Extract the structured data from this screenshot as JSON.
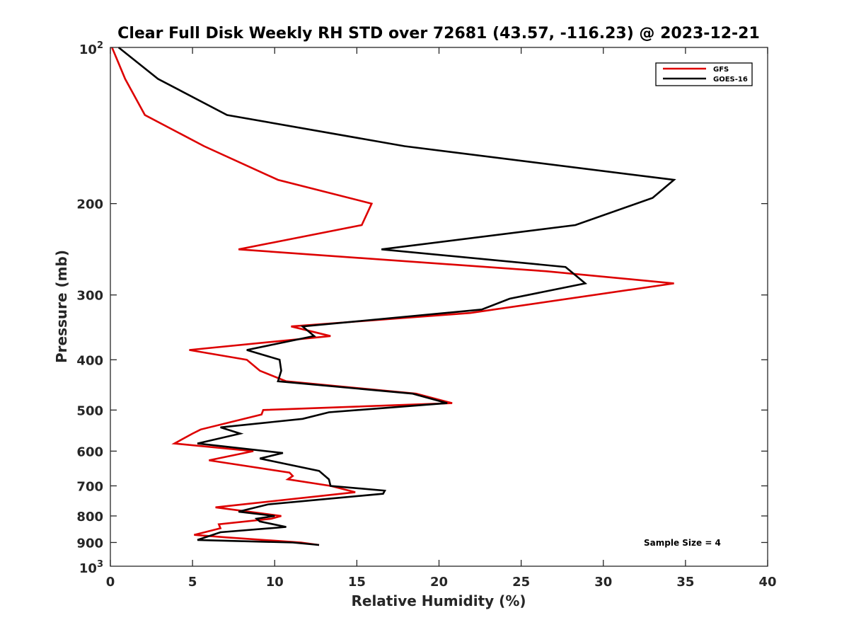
{
  "chart_data": {
    "type": "line",
    "title": "Clear Full Disk Weekly RH STD over 72681 (43.57, -116.23) @ 2023-12-21",
    "xlabel": "Relative Humidity (%)",
    "ylabel": "Pressure (mb)",
    "xlim": [
      0,
      40
    ],
    "ylim": [
      100,
      1000
    ],
    "y_scale": "log",
    "y_reversed": true,
    "xticks": [
      0,
      5,
      10,
      15,
      20,
      25,
      30,
      35,
      40
    ],
    "xtick_labels": [
      "0",
      "5",
      "10",
      "15",
      "20",
      "25",
      "30",
      "35",
      "40"
    ],
    "yticks": [
      200,
      300,
      400,
      500,
      600,
      700,
      800,
      900
    ],
    "ytick_labels": [
      "200",
      "300",
      "400",
      "500",
      "600",
      "700",
      "800",
      "900"
    ],
    "ytick_top": {
      "base": "10",
      "exp": "2"
    },
    "ytick_bottom": {
      "base": "10",
      "exp": "3"
    },
    "grid": false,
    "legend_position": "top-right",
    "annotation": "Sample Size = 4",
    "series": [
      {
        "name": "GFS",
        "color": "#dd0000",
        "points": [
          [
            0.1,
            100
          ],
          [
            0.9,
            115
          ],
          [
            2.1,
            135
          ],
          [
            5.7,
            155
          ],
          [
            10.2,
            180
          ],
          [
            15.9,
            200
          ],
          [
            15.3,
            220
          ],
          [
            7.8,
            245
          ],
          [
            26.5,
            270
          ],
          [
            34.3,
            285
          ],
          [
            21.9,
            325
          ],
          [
            11.0,
            345
          ],
          [
            13.4,
            360
          ],
          [
            4.8,
            383
          ],
          [
            8.3,
            400
          ],
          [
            9.1,
            420
          ],
          [
            10.7,
            440
          ],
          [
            18.6,
            465
          ],
          [
            20.8,
            485
          ],
          [
            9.3,
            500
          ],
          [
            9.2,
            510
          ],
          [
            5.5,
            545
          ],
          [
            5.0,
            555
          ],
          [
            3.9,
            580
          ],
          [
            8.7,
            600
          ],
          [
            6.0,
            625
          ],
          [
            10.9,
            660
          ],
          [
            11.1,
            670
          ],
          [
            10.8,
            680
          ],
          [
            13.4,
            700
          ],
          [
            14.9,
            720
          ],
          [
            6.4,
            770
          ],
          [
            10.4,
            800
          ],
          [
            9.8,
            810
          ],
          [
            6.6,
            830
          ],
          [
            6.7,
            845
          ],
          [
            5.1,
            870
          ],
          [
            7.1,
            880
          ],
          [
            11.6,
            900
          ],
          [
            12.7,
            910
          ]
        ]
      },
      {
        "name": "GOES-16",
        "color": "#000000",
        "points": [
          [
            0.5,
            100
          ],
          [
            2.9,
            115
          ],
          [
            7.1,
            135
          ],
          [
            17.9,
            155
          ],
          [
            34.3,
            180
          ],
          [
            33.0,
            195
          ],
          [
            28.3,
            220
          ],
          [
            16.5,
            245
          ],
          [
            27.7,
            265
          ],
          [
            28.9,
            285
          ],
          [
            24.3,
            305
          ],
          [
            22.6,
            320
          ],
          [
            11.7,
            345
          ],
          [
            12.4,
            360
          ],
          [
            8.3,
            383
          ],
          [
            10.3,
            400
          ],
          [
            10.4,
            420
          ],
          [
            10.2,
            440
          ],
          [
            18.4,
            465
          ],
          [
            20.5,
            485
          ],
          [
            13.3,
            505
          ],
          [
            11.7,
            520
          ],
          [
            6.7,
            540
          ],
          [
            7.9,
            555
          ],
          [
            5.3,
            580
          ],
          [
            10.5,
            605
          ],
          [
            9.1,
            620
          ],
          [
            12.7,
            655
          ],
          [
            13.3,
            680
          ],
          [
            13.4,
            700
          ],
          [
            16.7,
            715
          ],
          [
            16.6,
            725
          ],
          [
            9.6,
            760
          ],
          [
            7.8,
            785
          ],
          [
            10.0,
            800
          ],
          [
            8.9,
            810
          ],
          [
            9.1,
            820
          ],
          [
            10.7,
            840
          ],
          [
            6.7,
            860
          ],
          [
            5.3,
            890
          ],
          [
            11.1,
            900
          ],
          [
            12.7,
            910
          ]
        ]
      }
    ]
  }
}
